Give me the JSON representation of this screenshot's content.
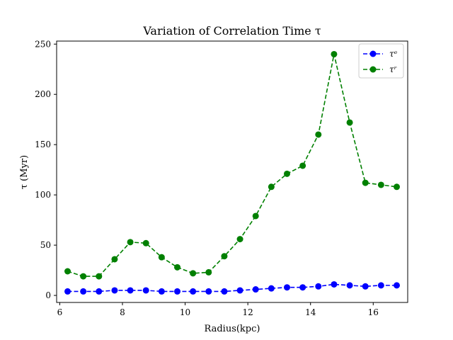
{
  "chart_data": {
    "type": "line",
    "title": "Variation of Correlation Time τ",
    "xlabel": "Radius(kpc)",
    "ylabel": "τ (Myr)",
    "xlim": [
      5.9,
      17.1
    ],
    "ylim": [
      -7,
      253
    ],
    "xticks": [
      6,
      8,
      10,
      12,
      14,
      16
    ],
    "yticks": [
      0,
      50,
      100,
      150,
      200,
      250
    ],
    "grid": false,
    "legend_position": "top-right",
    "x": [
      6.25,
      6.75,
      7.25,
      7.75,
      8.25,
      8.75,
      9.25,
      9.75,
      10.25,
      10.75,
      11.25,
      11.75,
      12.25,
      12.75,
      13.25,
      13.75,
      14.25,
      14.75,
      15.25,
      15.75,
      16.25,
      16.75
    ],
    "series": [
      {
        "name": "τᵉ",
        "color": "#0000ff",
        "values": [
          4,
          4,
          4,
          5,
          5,
          5,
          4,
          4,
          4,
          4,
          4,
          5,
          6,
          7,
          8,
          8,
          9,
          11,
          10,
          9,
          10,
          10
        ]
      },
      {
        "name": "τʳ",
        "color": "#008000",
        "values": [
          24,
          19,
          19,
          36,
          53,
          52,
          38,
          28,
          22,
          23,
          39,
          56,
          79,
          108,
          121,
          129,
          160,
          240,
          172,
          112,
          110,
          108
        ]
      }
    ]
  }
}
